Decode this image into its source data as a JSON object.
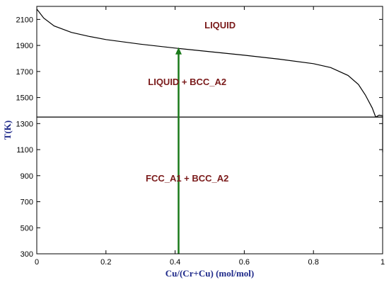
{
  "chart_data": {
    "type": "line",
    "title": "",
    "xlabel": "Cu/(Cr+Cu) (mol/mol)",
    "ylabel": "T(K)",
    "xlim": [
      0,
      1
    ],
    "ylim": [
      300,
      2200
    ],
    "xticks": [
      0,
      0.2,
      0.4,
      0.6,
      0.8,
      1
    ],
    "xtick_labels": [
      "0",
      "0.2",
      "0.4",
      "0.6",
      "0.8",
      "1"
    ],
    "yticks": [
      300,
      500,
      700,
      900,
      1100,
      1300,
      1500,
      1700,
      1900,
      2100
    ],
    "ytick_labels": [
      "300",
      "500",
      "700",
      "900",
      "1100",
      "1300",
      "1500",
      "1700",
      "1900",
      "2100"
    ],
    "grid": false,
    "series": [
      {
        "role": "liquidus",
        "color": "#000000",
        "x": [
          0,
          0.02,
          0.05,
          0.1,
          0.15,
          0.2,
          0.3,
          0.4,
          0.5,
          0.6,
          0.7,
          0.8,
          0.85,
          0.9,
          0.93,
          0.95,
          0.97,
          0.98
        ],
        "y": [
          2180,
          2110,
          2050,
          2000,
          1970,
          1945,
          1910,
          1880,
          1852,
          1825,
          1795,
          1760,
          1730,
          1670,
          1600,
          1520,
          1420,
          1350
        ]
      },
      {
        "role": "eutectic-line",
        "color": "#000000",
        "x": [
          0,
          1
        ],
        "y": [
          1350,
          1350
        ]
      },
      {
        "role": "solvus-right",
        "color": "#000000",
        "x": [
          0.98,
          0.99,
          1.0,
          1.0
        ],
        "y": [
          1350,
          1365,
          1360,
          1080
        ]
      }
    ],
    "annotations": [
      {
        "text": "LIQUID",
        "x": 0.53,
        "y": 2030,
        "color": "#7a1a1a"
      },
      {
        "text": "LIQUID + BCC_A2",
        "x": 0.435,
        "y": 1595,
        "color": "#7a1a1a"
      },
      {
        "text": "FCC_A1 + BCC_A2",
        "x": 0.435,
        "y": 855,
        "color": "#7a1a1a"
      }
    ],
    "arrow": {
      "x": 0.41,
      "y_from": 300,
      "y_to": 1880,
      "color": "#1a7a1a"
    }
  }
}
